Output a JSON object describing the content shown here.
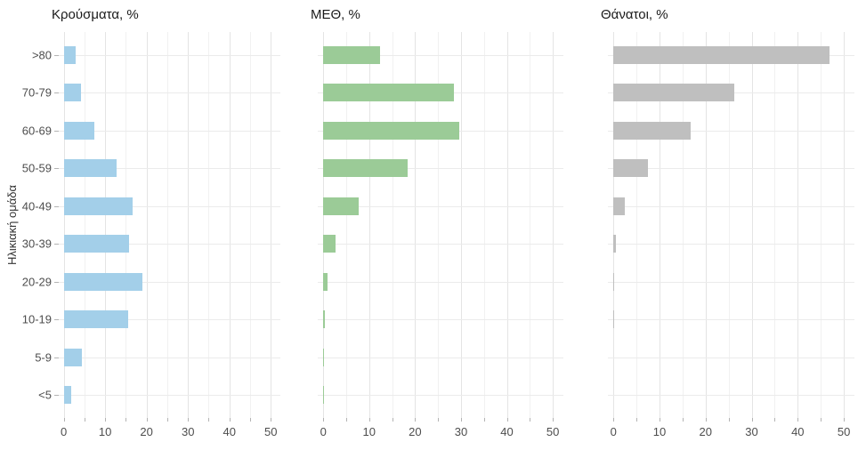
{
  "chart_data": {
    "type": "bar",
    "orientation": "horizontal",
    "ylabel": "Ηλικιακή ομάδα",
    "categories": [
      ">80",
      "70-79",
      "60-69",
      "50-59",
      "40-49",
      "30-39",
      "20-29",
      "10-19",
      "5-9",
      "<5"
    ],
    "series": [
      {
        "name": "Κρούσματα, %",
        "color": "#a3cfe9",
        "values": [
          2.8,
          4.1,
          7.3,
          12.8,
          16.7,
          15.7,
          18.9,
          15.6,
          4.3,
          1.8
        ]
      },
      {
        "name": "ΜΕΘ, %",
        "color": "#9bcb97",
        "values": [
          12.3,
          28.5,
          29.7,
          18.3,
          7.7,
          2.7,
          1.0,
          0.4,
          0.1,
          0.2
        ]
      },
      {
        "name": "Θάνατοι, %",
        "color": "#bfbfbf",
        "values": [
          46.8,
          26.3,
          16.8,
          7.5,
          2.5,
          0.5,
          0.15,
          0.15,
          0,
          0
        ]
      }
    ],
    "x_ticks": [
      0,
      10,
      20,
      30,
      40,
      50
    ],
    "x_minor_step": 5,
    "xlim": [
      -1.2,
      52.3
    ],
    "grid": true,
    "legend": "none",
    "colors": {
      "grid_major": "#e4e4e4",
      "grid_minor": "#f1f1f1",
      "grid_horizontal": "#ebebeb",
      "tick": "#b3b3b3",
      "axis_text": "#4d4d4d",
      "title_text": "#1a1a1a",
      "background": "#ffffff"
    }
  }
}
